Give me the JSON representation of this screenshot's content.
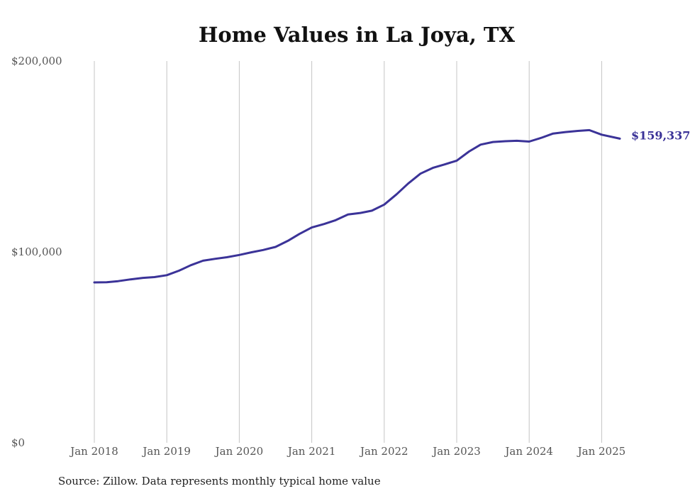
{
  "chart_data": {
    "type": "line",
    "title": "Home Values in La Joya, TX",
    "xlabel": "",
    "ylabel": "",
    "ylim": [
      0,
      200000
    ],
    "y_ticks": [
      {
        "value": 0,
        "label": "$0"
      },
      {
        "value": 100000,
        "label": "$100,000"
      },
      {
        "value": 200000,
        "label": "$200,000"
      }
    ],
    "x_ticks": [
      {
        "value": 2018,
        "label": "Jan 2018"
      },
      {
        "value": 2019,
        "label": "Jan 2019"
      },
      {
        "value": 2020,
        "label": "Jan 2020"
      },
      {
        "value": 2021,
        "label": "Jan 2021"
      },
      {
        "value": 2022,
        "label": "Jan 2022"
      },
      {
        "value": 2023,
        "label": "Jan 2023"
      },
      {
        "value": 2024,
        "label": "Jan 2024"
      },
      {
        "value": 2025,
        "label": "Jan 2025"
      }
    ],
    "xlim": [
      2018,
      2025.25
    ],
    "grid": "vertical",
    "line_color": "#3b3398",
    "series": [
      {
        "points": [
          [
            2018.0,
            84000
          ],
          [
            2018.17,
            84100
          ],
          [
            2018.33,
            84700
          ],
          [
            2018.5,
            85600
          ],
          [
            2018.67,
            86400
          ],
          [
            2018.83,
            86800
          ],
          [
            2019.0,
            87800
          ],
          [
            2019.17,
            90200
          ],
          [
            2019.33,
            93000
          ],
          [
            2019.5,
            95400
          ],
          [
            2019.67,
            96400
          ],
          [
            2019.83,
            97200
          ],
          [
            2020.0,
            98400
          ],
          [
            2020.17,
            99800
          ],
          [
            2020.33,
            101000
          ],
          [
            2020.5,
            102600
          ],
          [
            2020.67,
            105800
          ],
          [
            2020.83,
            109400
          ],
          [
            2021.0,
            112800
          ],
          [
            2021.17,
            114600
          ],
          [
            2021.33,
            116600
          ],
          [
            2021.5,
            119600
          ],
          [
            2021.67,
            120400
          ],
          [
            2021.83,
            121600
          ],
          [
            2022.0,
            124800
          ],
          [
            2022.17,
            130200
          ],
          [
            2022.33,
            135800
          ],
          [
            2022.5,
            141000
          ],
          [
            2022.67,
            144000
          ],
          [
            2022.83,
            145800
          ],
          [
            2023.0,
            147800
          ],
          [
            2023.17,
            152600
          ],
          [
            2023.33,
            156200
          ],
          [
            2023.5,
            157600
          ],
          [
            2023.67,
            158000
          ],
          [
            2023.83,
            158200
          ],
          [
            2024.0,
            157800
          ],
          [
            2024.17,
            159800
          ],
          [
            2024.33,
            162000
          ],
          [
            2024.5,
            162800
          ],
          [
            2024.67,
            163400
          ],
          [
            2024.83,
            163800
          ],
          [
            2025.0,
            161400
          ],
          [
            2025.25,
            159337
          ]
        ]
      }
    ],
    "end_label": "$159,337",
    "source": "Source: Zillow. Data represents monthly typical home value"
  }
}
